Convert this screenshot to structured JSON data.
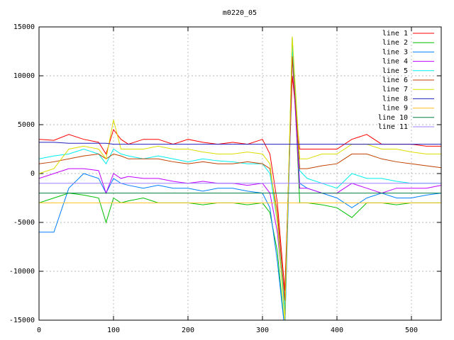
{
  "chart_data": {
    "type": "line",
    "title": "m0220_05",
    "x": [
      0,
      20,
      40,
      60,
      80,
      90,
      100,
      110,
      120,
      140,
      160,
      180,
      200,
      220,
      240,
      260,
      280,
      300,
      310,
      320,
      330,
      340,
      350,
      360,
      380,
      400,
      420,
      440,
      460,
      480,
      500,
      520,
      540
    ],
    "xlim": [
      0,
      540
    ],
    "xticks": [
      0,
      100,
      200,
      300,
      400,
      500
    ],
    "ylim": [
      -15000,
      15000
    ],
    "yticks": [
      -15000,
      -10000,
      -5000,
      0,
      5000,
      10000,
      15000
    ],
    "grid": true,
    "legend": "top-right",
    "series": [
      {
        "name": "line 1",
        "color": "#ff0000",
        "values": [
          3500,
          3400,
          4000,
          3500,
          3200,
          2000,
          4500,
          3500,
          3000,
          3500,
          3500,
          3000,
          3500,
          3200,
          3000,
          3200,
          3000,
          3500,
          2000,
          -3000,
          -12000,
          10000,
          2500,
          2500,
          2500,
          2500,
          3500,
          4000,
          3000,
          3000,
          3000,
          2800,
          2800
        ]
      },
      {
        "name": "line 2",
        "color": "#00c000",
        "values": [
          -3000,
          -2500,
          -2000,
          -2200,
          -2500,
          -5000,
          -2500,
          -3000,
          -2800,
          -2500,
          -3000,
          -3000,
          -3000,
          -3200,
          -3000,
          -3000,
          -3200,
          -3000,
          -4000,
          -8000,
          -16000,
          14000,
          -3000,
          -3000,
          -3200,
          -3500,
          -4500,
          -3000,
          -3000,
          -3200,
          -3000,
          -3000,
          -3000
        ]
      },
      {
        "name": "line 3",
        "color": "#0080ff",
        "values": [
          -6000,
          -6000,
          -1500,
          0,
          -500,
          -2000,
          -500,
          -1000,
          -1200,
          -1500,
          -1200,
          -1500,
          -1500,
          -1800,
          -1500,
          -1500,
          -1800,
          -2000,
          -3500,
          -9000,
          -16000,
          12000,
          -1000,
          -1500,
          -2000,
          -2500,
          -3500,
          -2500,
          -2000,
          -2500,
          -2500,
          -2200,
          -2000
        ]
      },
      {
        "name": "line 4",
        "color": "#c000ff",
        "values": [
          -500,
          0,
          500,
          500,
          300,
          -2000,
          0,
          -500,
          -300,
          -500,
          -500,
          -800,
          -1000,
          -800,
          -1000,
          -1000,
          -1200,
          -1000,
          -2000,
          -6000,
          -14000,
          12000,
          -1500,
          -1500,
          -2000,
          -2000,
          -1000,
          -1500,
          -2000,
          -1500,
          -1500,
          -1500,
          -1200
        ]
      },
      {
        "name": "line 5",
        "color": "#00eeee",
        "values": [
          1500,
          1800,
          2000,
          2500,
          2000,
          1000,
          2500,
          2000,
          1800,
          1500,
          1800,
          1500,
          1200,
          1500,
          1300,
          1200,
          1000,
          1000,
          0,
          -5000,
          -14000,
          13000,
          300,
          -500,
          -1000,
          -1500,
          0,
          -500,
          -500,
          -800,
          -1000,
          -1000,
          -1000
        ]
      },
      {
        "name": "line 6",
        "color": "#c04000",
        "values": [
          1000,
          1200,
          1500,
          1800,
          2000,
          1500,
          2000,
          1800,
          1500,
          1500,
          1500,
          1200,
          1000,
          1200,
          1000,
          1000,
          1200,
          1000,
          500,
          -4000,
          -13000,
          12000,
          500,
          500,
          800,
          1000,
          2000,
          2000,
          1500,
          1200,
          1000,
          800,
          600
        ]
      },
      {
        "name": "line 7",
        "color": "#dddd00",
        "values": [
          0,
          500,
          2500,
          2800,
          2500,
          1500,
          5500,
          2500,
          2500,
          2500,
          2800,
          2500,
          2500,
          2200,
          2000,
          2000,
          2200,
          2000,
          1000,
          -5000,
          -15000,
          14000,
          1500,
          1500,
          2000,
          2000,
          3000,
          3000,
          2500,
          2500,
          2200,
          2000,
          2000
        ]
      },
      {
        "name": "line 8",
        "color": "#2020c0",
        "values": [
          3200,
          3200,
          3100,
          3100,
          3100,
          3100,
          3000,
          3000,
          3000,
          3000,
          3000,
          3000,
          3000,
          3000,
          3000,
          3000,
          3000,
          3000,
          3000,
          3000,
          3000,
          3000,
          3000,
          3000,
          3000,
          3000,
          3000,
          3000,
          3000,
          3000,
          3000,
          3000,
          3000
        ]
      },
      {
        "name": "line 9",
        "color": "#ffc020",
        "values": [
          -3000,
          -3000,
          -3000,
          -3000,
          -3000,
          -3000,
          -3000,
          -3000,
          -3000,
          -3000,
          -3000,
          -3000,
          -3000,
          -3000,
          -3000,
          -3000,
          -3000,
          -3000,
          -3000,
          -3000,
          -3000,
          -3000,
          -3000,
          -3000,
          -3000,
          -3000,
          -3000,
          -3000,
          -3000,
          -3000,
          -3000,
          -3000,
          -3000
        ]
      },
      {
        "name": "line 10",
        "color": "#008040",
        "values": [
          -2000,
          -2000,
          -2000,
          -2000,
          -2000,
          -2000,
          -2000,
          -2000,
          -2000,
          -2000,
          -2000,
          -2000,
          -2000,
          -2000,
          -2000,
          -2000,
          -2000,
          -2000,
          -2000,
          -2000,
          -2000,
          -2000,
          -2000,
          -2000,
          -2000,
          -2000,
          -2000,
          -2000,
          -2000,
          -2000,
          -2000,
          -2000,
          -2000
        ]
      },
      {
        "name": "line 11",
        "color": "#a080ff",
        "values": [
          -1000,
          -1000,
          -1000,
          -1000,
          -1000,
          -1000,
          -1000,
          -1000,
          -1000,
          -1000,
          -1000,
          -1000,
          -1000,
          -1000,
          -1000,
          -1000,
          -1000,
          -1000,
          -1000,
          -1000,
          -1000,
          -1000,
          -1000,
          -1000,
          -1000,
          -1000,
          -1000,
          -1000,
          -1000,
          -1000,
          -1000,
          -1000,
          -1000
        ]
      }
    ]
  }
}
